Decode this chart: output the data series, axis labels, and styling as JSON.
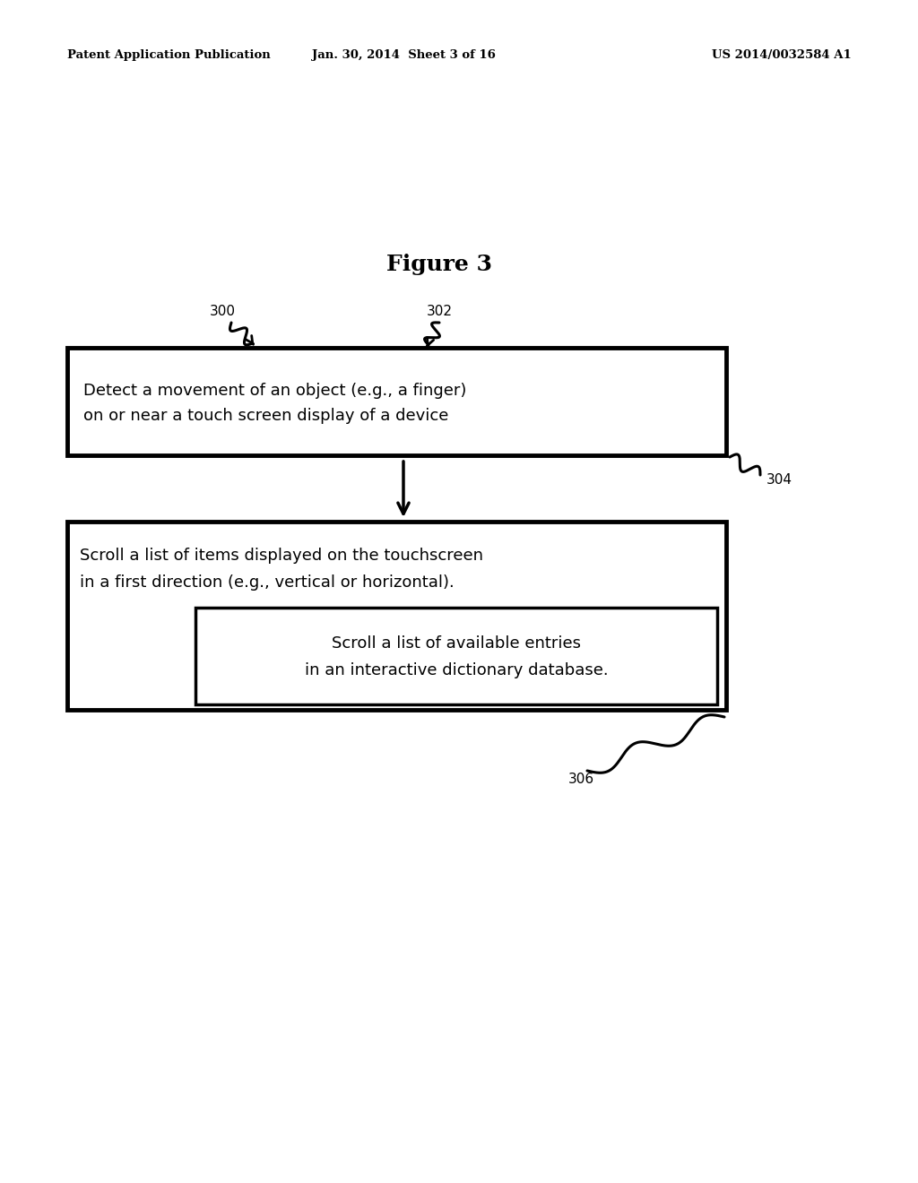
{
  "background_color": "#ffffff",
  "header_left": "Patent Application Publication",
  "header_mid": "Jan. 30, 2014  Sheet 3 of 16",
  "header_right": "US 2014/0032584 A1",
  "figure_title": "Figure 3",
  "box1_text_line1": "Detect a movement of an object (e.g., a finger)",
  "box1_text_line2": "on or near a touch screen display of a device",
  "box2_text_line1": "Scroll a list of items displayed on the touchscreen",
  "box2_text_line2": "in a first direction (e.g., vertical or horizontal).",
  "box3_text_line1": "Scroll a list of available entries",
  "box3_text_line2": "in an interactive dictionary database.",
  "label_300": "300",
  "label_302": "302",
  "label_304": "304",
  "label_306": "306"
}
